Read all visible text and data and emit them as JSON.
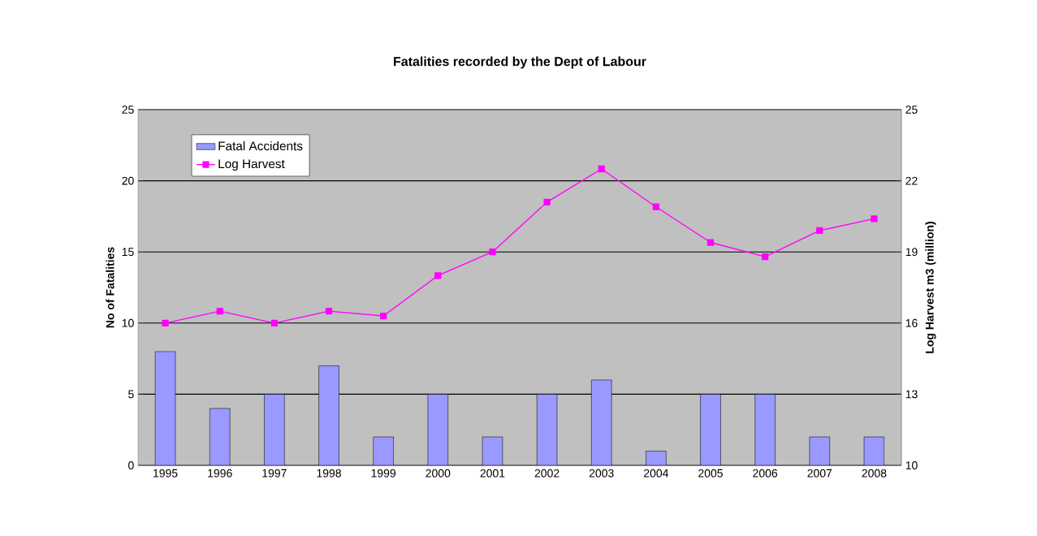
{
  "chart_data": {
    "type": "bar",
    "title": "Fatalities recorded by the Dept of Labour",
    "ylabel": "No of Fatalities",
    "y2label": "Log Harvest m3 (million)",
    "categories": [
      "1995",
      "1996",
      "1997",
      "1998",
      "1999",
      "2000",
      "2001",
      "2002",
      "2003",
      "2004",
      "2005",
      "2006",
      "2007",
      "2008"
    ],
    "series": [
      {
        "name": "Fatal Accidents",
        "color": "#9999ff",
        "values": [
          8,
          4,
          5,
          7,
          2,
          5,
          2,
          5,
          6,
          1,
          5,
          5,
          2,
          2
        ]
      },
      {
        "name": "Log Harvest",
        "type": "line",
        "axis": "y2",
        "color": "#ff00ff",
        "marker": "square",
        "values": [
          16.0,
          16.5,
          16.0,
          16.5,
          16.3,
          18.0,
          19.0,
          21.1,
          22.5,
          20.9,
          19.4,
          18.8,
          19.9,
          20.4
        ]
      }
    ],
    "ylim": [
      0,
      25
    ],
    "yticks": [
      0,
      5,
      10,
      15,
      20,
      25
    ],
    "y2lim": [
      10,
      25
    ],
    "y2ticks": [
      10,
      13,
      16,
      19,
      22,
      25
    ],
    "grid": "y",
    "legend": "top left"
  }
}
